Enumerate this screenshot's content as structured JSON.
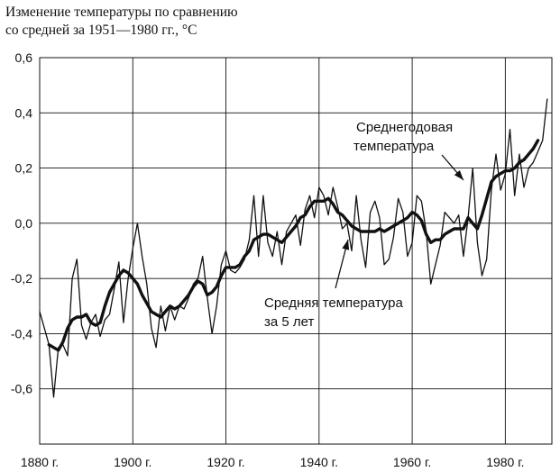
{
  "chart_data": {
    "type": "line",
    "title_lines": [
      "Изменение температуры по сравнению",
      "со средней за 1951—1980 гг., °C"
    ],
    "xlim": [
      1880,
      1990
    ],
    "ylim": [
      -0.8,
      0.6
    ],
    "grid": true,
    "x_ticks": [
      {
        "value": 1880,
        "label": "1880 г."
      },
      {
        "value": 1900,
        "label": "1900 г."
      },
      {
        "value": 1920,
        "label": "1920 г."
      },
      {
        "value": 1940,
        "label": "1940 г."
      },
      {
        "value": 1960,
        "label": "1960 г."
      },
      {
        "value": 1980,
        "label": "1980 г."
      }
    ],
    "y_ticks": [
      {
        "value": 0.6,
        "label": "0,6"
      },
      {
        "value": 0.4,
        "label": "0,4"
      },
      {
        "value": 0.2,
        "label": "0,2"
      },
      {
        "value": 0.0,
        "label": "0,0"
      },
      {
        "value": -0.2,
        "label": "-0,2"
      },
      {
        "value": -0.4,
        "label": "-0,4"
      },
      {
        "value": -0.6,
        "label": "-0,6"
      }
    ],
    "annotations": [
      {
        "lines": [
          "Среднегодовая",
          "температура"
        ],
        "series": "annual"
      },
      {
        "lines": [
          "Средняя температура",
          "за 5 лет"
        ],
        "series": "five_year"
      }
    ],
    "series": [
      {
        "key": "annual",
        "style": "thin",
        "x": [
          1880,
          1881,
          1882,
          1883,
          1884,
          1885,
          1886,
          1887,
          1888,
          1889,
          1890,
          1891,
          1892,
          1893,
          1894,
          1895,
          1896,
          1897,
          1898,
          1899,
          1900,
          1901,
          1902,
          1903,
          1904,
          1905,
          1906,
          1907,
          1908,
          1909,
          1910,
          1911,
          1912,
          1913,
          1914,
          1915,
          1916,
          1917,
          1918,
          1919,
          1920,
          1921,
          1922,
          1923,
          1924,
          1925,
          1926,
          1927,
          1928,
          1929,
          1930,
          1931,
          1932,
          1933,
          1934,
          1935,
          1936,
          1937,
          1938,
          1939,
          1940,
          1941,
          1942,
          1943,
          1944,
          1945,
          1946,
          1947,
          1948,
          1949,
          1950,
          1951,
          1952,
          1953,
          1954,
          1955,
          1956,
          1957,
          1958,
          1959,
          1960,
          1961,
          1962,
          1963,
          1964,
          1965,
          1966,
          1967,
          1968,
          1969,
          1970,
          1971,
          1972,
          1973,
          1974,
          1975,
          1976,
          1977,
          1978,
          1979,
          1980,
          1981,
          1982,
          1983,
          1984,
          1985,
          1986,
          1987,
          1988,
          1989
        ],
        "values": [
          -0.32,
          -0.38,
          -0.44,
          -0.63,
          -0.45,
          -0.44,
          -0.48,
          -0.2,
          -0.13,
          -0.37,
          -0.42,
          -0.36,
          -0.33,
          -0.41,
          -0.35,
          -0.33,
          -0.24,
          -0.14,
          -0.36,
          -0.2,
          -0.09,
          0.0,
          -0.12,
          -0.22,
          -0.38,
          -0.45,
          -0.3,
          -0.39,
          -0.3,
          -0.35,
          -0.3,
          -0.31,
          -0.27,
          -0.22,
          -0.2,
          -0.12,
          -0.27,
          -0.4,
          -0.3,
          -0.15,
          -0.1,
          -0.17,
          -0.18,
          -0.16,
          -0.13,
          -0.06,
          0.1,
          -0.12,
          0.1,
          -0.07,
          -0.12,
          -0.03,
          -0.15,
          -0.03,
          0.0,
          0.03,
          -0.08,
          0.05,
          0.1,
          0.02,
          0.13,
          0.1,
          0.03,
          0.13,
          0.06,
          -0.02,
          0.0,
          -0.1,
          0.1,
          -0.06,
          -0.16,
          0.04,
          0.08,
          0.02,
          -0.15,
          -0.13,
          -0.05,
          0.09,
          0.04,
          -0.12,
          -0.07,
          0.1,
          0.08,
          -0.03,
          -0.22,
          -0.15,
          -0.08,
          0.04,
          0.02,
          0.0,
          0.03,
          -0.12,
          0.02,
          0.2,
          -0.07,
          -0.19,
          -0.13,
          0.12,
          0.25,
          0.12,
          0.18,
          0.34,
          0.1,
          0.25,
          0.13,
          0.2,
          0.22,
          0.26,
          0.3,
          0.45
        ]
      },
      {
        "key": "five_year",
        "style": "thick",
        "x": [
          1882,
          1883,
          1884,
          1885,
          1886,
          1887,
          1888,
          1889,
          1890,
          1891,
          1892,
          1893,
          1894,
          1895,
          1896,
          1897,
          1898,
          1899,
          1900,
          1901,
          1902,
          1903,
          1904,
          1905,
          1906,
          1907,
          1908,
          1909,
          1910,
          1911,
          1912,
          1913,
          1914,
          1915,
          1916,
          1917,
          1918,
          1919,
          1920,
          1921,
          1922,
          1923,
          1924,
          1925,
          1926,
          1927,
          1928,
          1929,
          1930,
          1931,
          1932,
          1933,
          1934,
          1935,
          1936,
          1937,
          1938,
          1939,
          1940,
          1941,
          1942,
          1943,
          1944,
          1945,
          1946,
          1947,
          1948,
          1949,
          1950,
          1951,
          1952,
          1953,
          1954,
          1955,
          1956,
          1957,
          1958,
          1959,
          1960,
          1961,
          1962,
          1963,
          1964,
          1965,
          1966,
          1967,
          1968,
          1969,
          1970,
          1971,
          1972,
          1973,
          1974,
          1975,
          1976,
          1977,
          1978,
          1979,
          1980,
          1981,
          1982,
          1983,
          1984,
          1985,
          1986,
          1987
        ],
        "values": [
          -0.44,
          -0.45,
          -0.46,
          -0.43,
          -0.38,
          -0.35,
          -0.34,
          -0.34,
          -0.33,
          -0.36,
          -0.37,
          -0.36,
          -0.3,
          -0.25,
          -0.22,
          -0.19,
          -0.17,
          -0.18,
          -0.2,
          -0.22,
          -0.26,
          -0.29,
          -0.32,
          -0.33,
          -0.34,
          -0.32,
          -0.3,
          -0.31,
          -0.3,
          -0.28,
          -0.26,
          -0.23,
          -0.21,
          -0.22,
          -0.26,
          -0.25,
          -0.23,
          -0.19,
          -0.16,
          -0.16,
          -0.16,
          -0.15,
          -0.12,
          -0.1,
          -0.06,
          -0.05,
          -0.04,
          -0.04,
          -0.05,
          -0.06,
          -0.07,
          -0.05,
          -0.03,
          -0.01,
          0.02,
          0.03,
          0.06,
          0.08,
          0.08,
          0.08,
          0.09,
          0.07,
          0.04,
          0.03,
          0.01,
          -0.01,
          -0.02,
          -0.03,
          -0.03,
          -0.03,
          -0.03,
          -0.02,
          -0.03,
          -0.02,
          -0.01,
          0.0,
          0.01,
          0.02,
          0.04,
          0.03,
          0.01,
          -0.04,
          -0.07,
          -0.06,
          -0.06,
          -0.04,
          -0.03,
          -0.02,
          -0.02,
          -0.02,
          0.02,
          0.0,
          -0.02,
          0.03,
          0.09,
          0.15,
          0.17,
          0.18,
          0.19,
          0.19,
          0.2,
          0.22,
          0.23,
          0.25,
          0.27,
          0.3
        ]
      }
    ]
  }
}
